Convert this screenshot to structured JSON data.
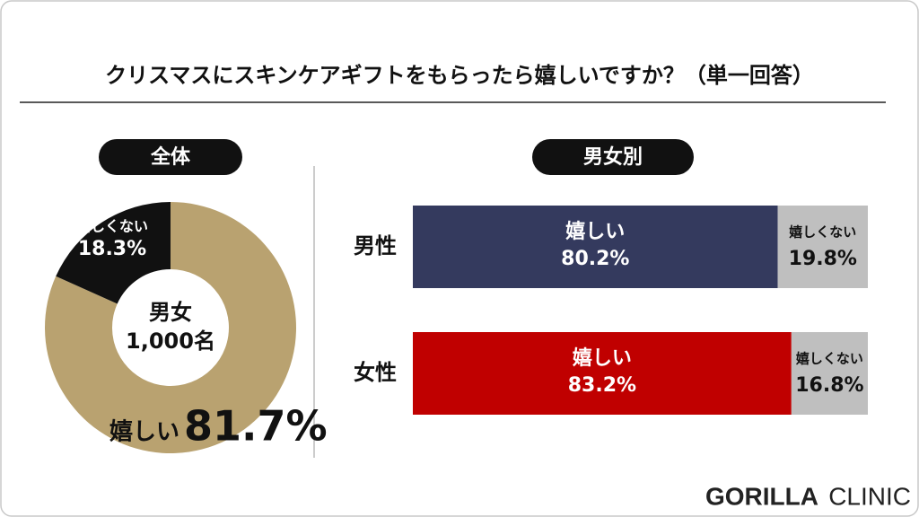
{
  "title": "クリスマスにスキンケアギフトをもらったら嬉しいですか？（単一回答）",
  "chart_data": [
    {
      "type": "pie",
      "title": "全体",
      "donut": true,
      "categories": [
        "嬉しい",
        "嬉しくない"
      ],
      "values": [
        81.7,
        18.3
      ],
      "value_labels": [
        "81.7%",
        "18.3%"
      ],
      "colors": [
        "#b9a270",
        "#111111"
      ],
      "center_label": [
        "男女",
        "1,000名"
      ]
    },
    {
      "type": "bar",
      "title": "男女別",
      "orientation": "horizontal",
      "stacked": true,
      "categories": [
        "男性",
        "女性"
      ],
      "xlim": [
        0,
        100
      ],
      "series": [
        {
          "name": "嬉しい",
          "colors": [
            "#343a5e",
            "#c00000"
          ],
          "values": [
            80.2,
            83.2
          ],
          "value_labels": [
            "80.2%",
            "83.2%"
          ]
        },
        {
          "name": "嬉しくない",
          "color": "#bfbfbf",
          "values": [
            19.8,
            16.8
          ],
          "value_labels": [
            "19.8%",
            "16.8%"
          ]
        }
      ]
    }
  ],
  "logo": {
    "bold": "GORILLA",
    "light": "CLINIC"
  }
}
